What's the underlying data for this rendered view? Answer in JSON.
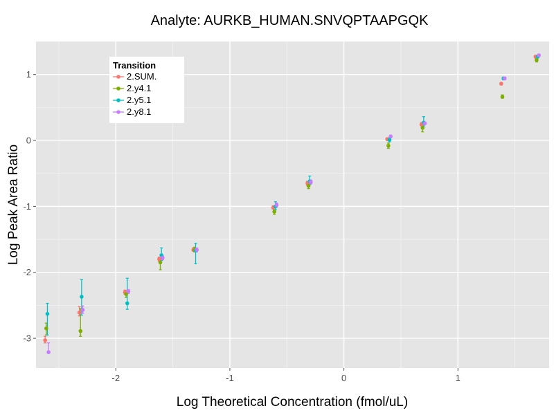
{
  "chart_data": {
    "type": "scatter",
    "title": "Analyte: AURKB_HUMAN.SNVQPTAAPGQK",
    "xlabel": "Log Theoretical Concentration (fmol/uL)",
    "ylabel": "Log Peak Area Ratio",
    "xlim": [
      -2.7,
      1.8
    ],
    "ylim": [
      -3.45,
      1.5
    ],
    "x_ticks": [
      -2,
      -1,
      0,
      1
    ],
    "x_tick_labels": [
      "-2",
      "-1",
      "0",
      "1"
    ],
    "y_ticks": [
      -3,
      -2,
      -1,
      0,
      1
    ],
    "y_tick_labels": [
      "-3",
      "-2",
      "-1",
      "0",
      "1"
    ],
    "grid": true,
    "legend": {
      "title": "Transition",
      "position": "top-left"
    },
    "series": [
      {
        "name": "2.SUM.",
        "color": "#F8766D",
        "points": [
          {
            "x": -2.62,
            "y": -3.03,
            "lo": -3.07,
            "hi": -2.97
          },
          {
            "x": -2.32,
            "y": -2.61,
            "lo": -2.66,
            "hi": -2.52
          },
          {
            "x": -1.92,
            "y": -2.3,
            "lo": -2.33,
            "hi": -2.27
          },
          {
            "x": -1.62,
            "y": -1.8,
            "lo": -1.83,
            "hi": -1.77
          },
          {
            "x": -1.32,
            "y": -1.66,
            "lo": -1.68,
            "hi": -1.63
          },
          {
            "x": -0.62,
            "y": -1.02,
            "lo": -1.04,
            "hi": -0.99
          },
          {
            "x": -0.32,
            "y": -0.65,
            "lo": -0.68,
            "hi": -0.62
          },
          {
            "x": 0.38,
            "y": 0.02,
            "lo": 0.0,
            "hi": 0.04
          },
          {
            "x": 0.68,
            "y": 0.24,
            "lo": 0.22,
            "hi": 0.27
          },
          {
            "x": 1.38,
            "y": 0.86,
            "lo": 0.84,
            "hi": 0.88
          },
          {
            "x": 1.68,
            "y": 1.27,
            "lo": 1.25,
            "hi": 1.29
          }
        ]
      },
      {
        "name": "2.y4.1",
        "color": "#7CAE00",
        "points": [
          {
            "x": -2.61,
            "y": -2.85,
            "lo": -2.95,
            "hi": -2.77
          },
          {
            "x": -2.31,
            "y": -2.89,
            "lo": -2.97,
            "hi": -2.55
          },
          {
            "x": -1.91,
            "y": -2.33,
            "lo": -2.38,
            "hi": -2.28
          },
          {
            "x": -1.61,
            "y": -1.85,
            "lo": -1.96,
            "hi": -1.8
          },
          {
            "x": -1.31,
            "y": -1.66,
            "lo": -1.69,
            "hi": -1.62
          },
          {
            "x": -0.61,
            "y": -1.08,
            "lo": -1.12,
            "hi": -1.05
          },
          {
            "x": -0.31,
            "y": -0.69,
            "lo": -0.73,
            "hi": -0.66
          },
          {
            "x": 0.39,
            "y": -0.08,
            "lo": -0.12,
            "hi": -0.04
          },
          {
            "x": 0.69,
            "y": 0.19,
            "lo": 0.13,
            "hi": 0.24
          },
          {
            "x": 1.39,
            "y": 0.66,
            "lo": 0.64,
            "hi": 0.69
          },
          {
            "x": 1.69,
            "y": 1.22,
            "lo": 1.19,
            "hi": 1.25
          }
        ]
      },
      {
        "name": "2.y5.1",
        "color": "#00BFC4",
        "points": [
          {
            "x": -2.6,
            "y": -2.63,
            "lo": -2.95,
            "hi": -2.47
          },
          {
            "x": -2.3,
            "y": -2.37,
            "lo": -2.65,
            "hi": -2.11
          },
          {
            "x": -1.9,
            "y": -2.47,
            "lo": -2.56,
            "hi": -2.09
          },
          {
            "x": -1.6,
            "y": -1.74,
            "lo": -1.82,
            "hi": -1.63
          },
          {
            "x": -1.3,
            "y": -1.67,
            "lo": -1.87,
            "hi": -1.56
          },
          {
            "x": -0.6,
            "y": -1.0,
            "lo": -1.05,
            "hi": -0.93
          },
          {
            "x": -0.3,
            "y": -0.62,
            "lo": -0.67,
            "hi": -0.54
          },
          {
            "x": 0.4,
            "y": 0.01,
            "lo": -0.02,
            "hi": 0.04
          },
          {
            "x": 0.7,
            "y": 0.27,
            "lo": 0.22,
            "hi": 0.36
          },
          {
            "x": 1.4,
            "y": 0.94,
            "lo": 0.92,
            "hi": 0.96
          },
          {
            "x": 1.7,
            "y": 1.27,
            "lo": 1.25,
            "hi": 1.29
          }
        ]
      },
      {
        "name": "2.y8.1",
        "color": "#C77CFF",
        "points": [
          {
            "x": -2.59,
            "y": -3.21,
            "lo": -3.23,
            "hi": -3.07
          },
          {
            "x": -2.29,
            "y": -2.57,
            "lo": -2.62,
            "hi": -2.51
          },
          {
            "x": -1.89,
            "y": -2.29,
            "lo": -2.32,
            "hi": -2.26
          },
          {
            "x": -1.59,
            "y": -1.78,
            "lo": -1.81,
            "hi": -1.75
          },
          {
            "x": -1.29,
            "y": -1.66,
            "lo": -1.69,
            "hi": -1.63
          },
          {
            "x": -0.59,
            "y": -0.98,
            "lo": -1.01,
            "hi": -0.95
          },
          {
            "x": -0.29,
            "y": -0.63,
            "lo": -0.66,
            "hi": -0.6
          },
          {
            "x": 0.41,
            "y": 0.06,
            "lo": 0.04,
            "hi": 0.08
          },
          {
            "x": 0.71,
            "y": 0.26,
            "lo": 0.24,
            "hi": 0.28
          },
          {
            "x": 1.41,
            "y": 0.94,
            "lo": 0.92,
            "hi": 0.96
          },
          {
            "x": 1.71,
            "y": 1.29,
            "lo": 1.27,
            "hi": 1.31
          }
        ]
      }
    ]
  }
}
